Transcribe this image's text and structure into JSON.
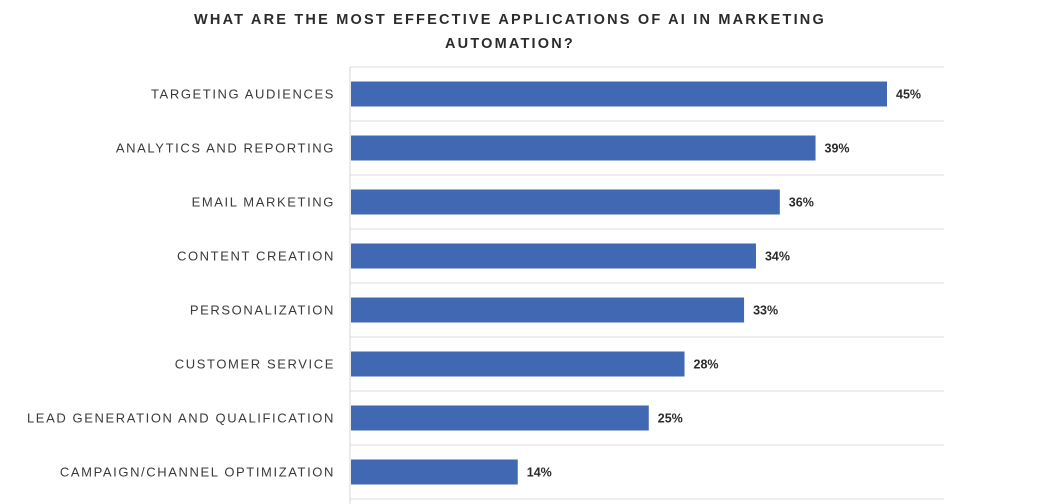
{
  "chart_data": {
    "type": "bar",
    "orientation": "horizontal",
    "title_lines": [
      "WHAT ARE THE MOST EFFECTIVE APPLICATIONS OF AI IN MARKETING",
      "AUTOMATION?"
    ],
    "categories": [
      "TARGETING AUDIENCES",
      "ANALYTICS AND REPORTING",
      "EMAIL MARKETING",
      "CONTENT CREATION",
      "PERSONALIZATION",
      "CUSTOMER SERVICE",
      "LEAD GENERATION AND QUALIFICATION",
      "CAMPAIGN/CHANNEL OPTIMIZATION"
    ],
    "values": [
      45,
      39,
      36,
      34,
      33,
      28,
      25,
      14
    ],
    "value_labels": [
      "45%",
      "39%",
      "36%",
      "34%",
      "33%",
      "28%",
      "25%",
      "14%"
    ],
    "unit": "%",
    "xlim": [
      0,
      50
    ],
    "grid": true,
    "legend": "none",
    "bar_color": "#4169b3"
  }
}
